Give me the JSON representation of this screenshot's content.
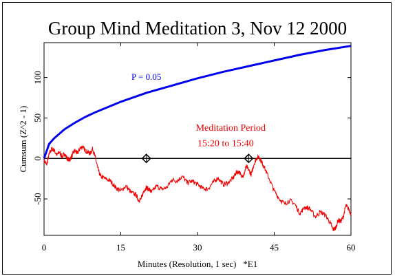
{
  "chart_data": {
    "type": "line",
    "title": "Group Mind Meditation 3, Nov 12 2000",
    "xlabel": "Minutes (Resolution, 1 sec)   *E1",
    "ylabel": "Cumsum (Z^2 - 1)",
    "xlim": [
      0,
      60
    ],
    "ylim": [
      -95,
      143
    ],
    "x_ticks": [
      0,
      15,
      30,
      45,
      60
    ],
    "y_ticks": [
      -50,
      0,
      50,
      100
    ],
    "grid": false,
    "colors": {
      "probability_envelope": "#0000ee",
      "cumsum": "#ee0000",
      "axes": "#000000"
    },
    "envelope": {
      "label": "P = 0.05",
      "x": [
        0,
        1,
        2,
        4,
        6,
        8,
        10,
        15,
        20,
        25,
        30,
        35,
        40,
        45,
        50,
        55,
        60
      ],
      "y": [
        0,
        18,
        25,
        36,
        44,
        51,
        57,
        70,
        81,
        90,
        99,
        107,
        114,
        121,
        128,
        134,
        139
      ]
    },
    "series": [
      {
        "values_x": [
          0,
          0.5,
          1,
          1.5,
          2,
          2.5,
          3,
          3.5,
          4,
          4.5,
          5,
          5.5,
          6,
          6.5,
          7,
          7.5,
          8,
          8.5,
          9,
          9.5,
          10,
          10.5,
          11,
          12,
          13,
          14,
          15,
          16,
          17,
          18,
          18.5,
          19,
          19.5,
          20,
          20.5,
          21,
          22,
          23,
          24,
          25,
          26,
          27,
          28,
          29,
          30,
          31,
          32,
          33,
          34,
          35,
          36,
          37,
          37.5,
          38,
          38.5,
          39,
          39.5,
          40,
          40.5,
          41,
          41.5,
          42,
          42.5,
          43,
          44,
          45,
          46,
          47,
          48,
          49,
          50,
          51,
          52,
          53,
          54,
          55,
          56,
          56.5,
          57,
          57.5,
          58,
          58.5,
          59,
          59.5,
          60
        ],
        "values_y": [
          -2,
          -8,
          5,
          12,
          10,
          4,
          8,
          2,
          6,
          0,
          -2,
          4,
          10,
          6,
          12,
          15,
          10,
          8,
          6,
          12,
          2,
          -12,
          -22,
          -25,
          -28,
          -36,
          -40,
          -34,
          -42,
          -45,
          -52,
          -50,
          -40,
          -36,
          -38,
          -42,
          -34,
          -38,
          -36,
          -26,
          -28,
          -22,
          -30,
          -28,
          -32,
          -37,
          -38,
          -30,
          -24,
          -32,
          -30,
          -24,
          -18,
          -16,
          -20,
          -22,
          -10,
          -14,
          -20,
          -8,
          0,
          2,
          -4,
          -10,
          -25,
          -40,
          -50,
          -56,
          -52,
          -56,
          -68,
          -60,
          -62,
          -72,
          -66,
          -70,
          -80,
          -88,
          -86,
          -76,
          -78,
          -72,
          -58,
          -62,
          -68
        ]
      }
    ],
    "annotations": [
      {
        "text": "Meditation Period",
        "x": 36.5,
        "y": 34
      },
      {
        "text": "15:20 to 15:40",
        "x": 35.5,
        "y": 15
      }
    ],
    "markers": [
      {
        "x": 20,
        "y": 0,
        "shape": "diamond"
      },
      {
        "x": 40,
        "y": 0,
        "shape": "diamond"
      }
    ]
  }
}
